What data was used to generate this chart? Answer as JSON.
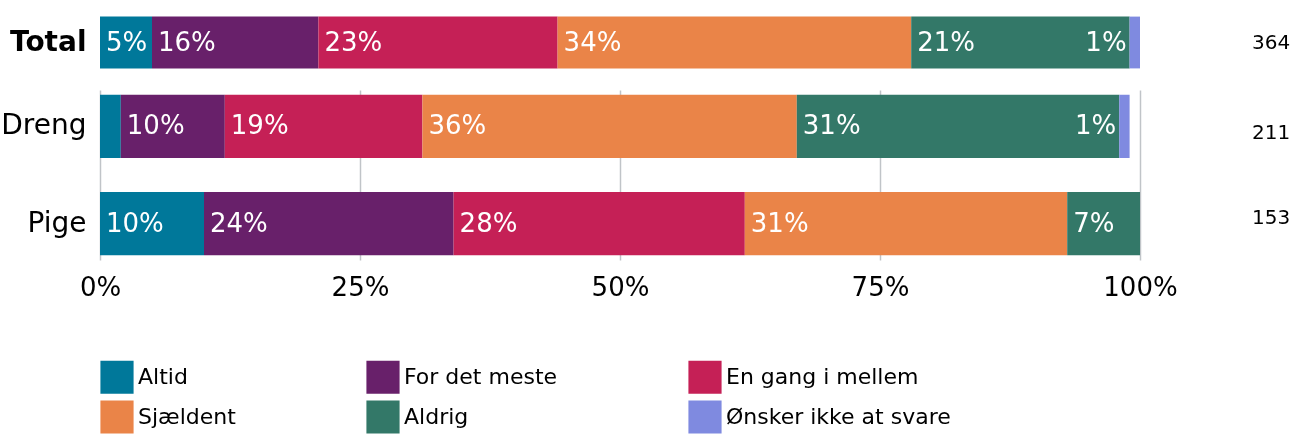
{
  "chart_data": [
    {
      "type": "bar",
      "orientation": "horizontal",
      "stacked": true,
      "categories": [
        "Total"
      ],
      "xlim": [
        0,
        100
      ],
      "tick_labels": "y",
      "grid": false,
      "legend": false,
      "annotations": [
        "364"
      ],
      "series": [
        {
          "color": "#00789a",
          "values": [
            5
          ],
          "value_labels": [
            "5%"
          ]
        },
        {
          "color": "#68206a",
          "values": [
            16
          ],
          "value_labels": [
            "16%"
          ]
        },
        {
          "color": "#c52056",
          "values": [
            23
          ],
          "value_labels": [
            "23%"
          ]
        },
        {
          "color": "#ea8448",
          "values": [
            34
          ],
          "value_labels": [
            "34%"
          ]
        },
        {
          "color": "#337868",
          "values": [
            21
          ],
          "value_labels": [
            "21%"
          ]
        },
        {
          "color": "#7f8ae0",
          "values": [
            1
          ],
          "value_labels": [
            "1%"
          ]
        }
      ]
    },
    {
      "type": "bar",
      "orientation": "horizontal",
      "stacked": true,
      "categories": [
        "Dreng",
        "Pige"
      ],
      "xlim": [
        0,
        100
      ],
      "xticks": [
        {
          "value": 0,
          "label": "0%"
        },
        {
          "value": 25,
          "label": "25%"
        },
        {
          "value": 50,
          "label": "50%"
        },
        {
          "value": 75,
          "label": "75%"
        },
        {
          "value": 100,
          "label": "100%"
        }
      ],
      "grid": "x",
      "legend": "bottom",
      "annotations": [
        "211",
        "153"
      ],
      "series": [
        {
          "name": "Altid",
          "color": "#00789a",
          "values": [
            2,
            10
          ],
          "value_labels": [
            null,
            "10%"
          ]
        },
        {
          "name": "For det meste",
          "color": "#68206a",
          "values": [
            10,
            24
          ],
          "value_labels": [
            "10%",
            "24%"
          ]
        },
        {
          "name": "En gang i mellem",
          "color": "#c52056",
          "values": [
            19,
            28
          ],
          "value_labels": [
            "19%",
            "28%"
          ]
        },
        {
          "name": "Sjældent",
          "color": "#ea8448",
          "values": [
            36,
            31
          ],
          "value_labels": [
            "36%",
            "31%"
          ]
        },
        {
          "name": "Aldrig",
          "color": "#337868",
          "values": [
            31,
            7
          ],
          "value_labels": [
            "31%",
            "7%"
          ]
        },
        {
          "name": "Ønsker ikke at svare",
          "color": "#7f8ae0",
          "values": [
            1,
            0
          ],
          "value_labels": [
            "1%",
            null
          ]
        }
      ]
    }
  ]
}
